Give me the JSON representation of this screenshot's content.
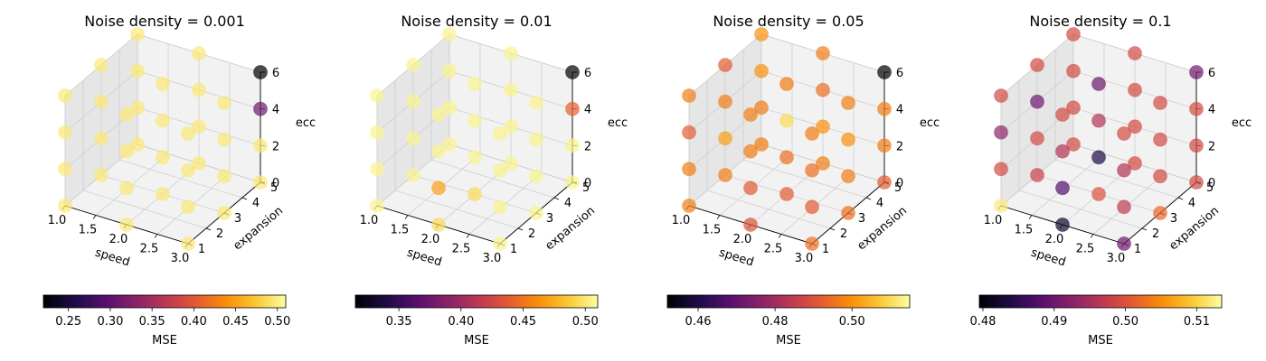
{
  "chart_data": [
    {
      "type": "scatter3d",
      "title": "Noise density = 0.001",
      "xlabel": "speed",
      "ylabel": "expansion",
      "zlabel": "ecc",
      "xticks": [
        "1.0",
        "1.5",
        "2.0",
        "2.5",
        "3.0"
      ],
      "yticks": [
        "1",
        "2",
        "3",
        "4",
        "5"
      ],
      "zticks": [
        "0",
        "2",
        "4",
        "6"
      ],
      "colorbar": {
        "label": "MSE",
        "cmap": "inferno",
        "min": 0.22,
        "max": 0.51,
        "ticks": [
          "0.25",
          "0.30",
          "0.35",
          "0.40",
          "0.45",
          "0.50"
        ],
        "tick_values": [
          0.25,
          0.3,
          0.35,
          0.4,
          0.45,
          0.5
        ]
      },
      "points": [
        {
          "speed": 1,
          "expansion": 1,
          "ecc": 0,
          "mse": 0.495
        },
        {
          "speed": 2,
          "expansion": 1,
          "ecc": 0,
          "mse": 0.495
        },
        {
          "speed": 3,
          "expansion": 1,
          "ecc": 0,
          "mse": 0.495
        },
        {
          "speed": 1,
          "expansion": 3,
          "ecc": 0,
          "mse": 0.495
        },
        {
          "speed": 2,
          "expansion": 3,
          "ecc": 0,
          "mse": 0.495
        },
        {
          "speed": 3,
          "expansion": 3,
          "ecc": 0,
          "mse": 0.495
        },
        {
          "speed": 1,
          "expansion": 5,
          "ecc": 0,
          "mse": 0.495
        },
        {
          "speed": 2,
          "expansion": 5,
          "ecc": 0,
          "mse": 0.495
        },
        {
          "speed": 3,
          "expansion": 5,
          "ecc": 0,
          "mse": 0.495
        },
        {
          "speed": 1,
          "expansion": 1,
          "ecc": 2,
          "mse": 0.495
        },
        {
          "speed": 2,
          "expansion": 1,
          "ecc": 2,
          "mse": 0.495
        },
        {
          "speed": 3,
          "expansion": 1,
          "ecc": 2,
          "mse": 0.495
        },
        {
          "speed": 1,
          "expansion": 3,
          "ecc": 2,
          "mse": 0.495
        },
        {
          "speed": 2,
          "expansion": 3,
          "ecc": 2,
          "mse": 0.495
        },
        {
          "speed": 3,
          "expansion": 3,
          "ecc": 2,
          "mse": 0.495
        },
        {
          "speed": 1,
          "expansion": 5,
          "ecc": 2,
          "mse": 0.495
        },
        {
          "speed": 2,
          "expansion": 5,
          "ecc": 2,
          "mse": 0.495
        },
        {
          "speed": 3,
          "expansion": 5,
          "ecc": 2,
          "mse": 0.495
        },
        {
          "speed": 1,
          "expansion": 1,
          "ecc": 4,
          "mse": 0.495
        },
        {
          "speed": 2,
          "expansion": 1,
          "ecc": 4,
          "mse": 0.495
        },
        {
          "speed": 3,
          "expansion": 1,
          "ecc": 4,
          "mse": 0.495
        },
        {
          "speed": 1,
          "expansion": 3,
          "ecc": 4,
          "mse": 0.495
        },
        {
          "speed": 2,
          "expansion": 3,
          "ecc": 4,
          "mse": 0.495
        },
        {
          "speed": 3,
          "expansion": 3,
          "ecc": 4,
          "mse": 0.495
        },
        {
          "speed": 1,
          "expansion": 5,
          "ecc": 4,
          "mse": 0.495
        },
        {
          "speed": 2,
          "expansion": 5,
          "ecc": 4,
          "mse": 0.495
        },
        {
          "speed": 3,
          "expansion": 5,
          "ecc": 4,
          "mse": 0.31
        },
        {
          "speed": 1,
          "expansion": 1,
          "ecc": 6,
          "mse": 0.495
        },
        {
          "speed": 2,
          "expansion": 1,
          "ecc": 6,
          "mse": 0.495
        },
        {
          "speed": 3,
          "expansion": 1,
          "ecc": 6,
          "mse": 0.495
        },
        {
          "speed": 1,
          "expansion": 3,
          "ecc": 6,
          "mse": 0.495
        },
        {
          "speed": 2,
          "expansion": 3,
          "ecc": 6,
          "mse": 0.495
        },
        {
          "speed": 3,
          "expansion": 3,
          "ecc": 6,
          "mse": 0.495
        },
        {
          "speed": 1,
          "expansion": 5,
          "ecc": 6,
          "mse": 0.495
        },
        {
          "speed": 2,
          "expansion": 5,
          "ecc": 6,
          "mse": 0.495
        },
        {
          "speed": 3,
          "expansion": 5,
          "ecc": 6,
          "mse": 0.22
        }
      ]
    },
    {
      "type": "scatter3d",
      "title": "Noise density = 0.01",
      "xlabel": "speed",
      "ylabel": "expansion",
      "zlabel": "ecc",
      "xticks": [
        "1.0",
        "1.5",
        "2.0",
        "2.5",
        "3.0"
      ],
      "yticks": [
        "1",
        "2",
        "3",
        "4",
        "5"
      ],
      "zticks": [
        "0",
        "2",
        "4",
        "6"
      ],
      "colorbar": {
        "label": "MSE",
        "cmap": "inferno",
        "min": 0.315,
        "max": 0.51,
        "ticks": [
          "0.35",
          "0.40",
          "0.45",
          "0.50"
        ],
        "tick_values": [
          0.35,
          0.4,
          0.45,
          0.5
        ]
      },
      "points": [
        {
          "speed": 1,
          "expansion": 1,
          "ecc": 0,
          "mse": 0.505
        },
        {
          "speed": 2,
          "expansion": 1,
          "ecc": 0,
          "mse": 0.495
        },
        {
          "speed": 3,
          "expansion": 1,
          "ecc": 0,
          "mse": 0.505
        },
        {
          "speed": 1,
          "expansion": 3,
          "ecc": 0,
          "mse": 0.505
        },
        {
          "speed": 2,
          "expansion": 3,
          "ecc": 0,
          "mse": 0.495
        },
        {
          "speed": 3,
          "expansion": 3,
          "ecc": 0,
          "mse": 0.505
        },
        {
          "speed": 1,
          "expansion": 5,
          "ecc": 0,
          "mse": 0.505
        },
        {
          "speed": 2,
          "expansion": 5,
          "ecc": 0,
          "mse": 0.505
        },
        {
          "speed": 3,
          "expansion": 5,
          "ecc": 0,
          "mse": 0.505
        },
        {
          "speed": 1,
          "expansion": 1,
          "ecc": 2,
          "mse": 0.505
        },
        {
          "speed": 2,
          "expansion": 1,
          "ecc": 2,
          "mse": 0.47
        },
        {
          "speed": 3,
          "expansion": 1,
          "ecc": 2,
          "mse": 0.505
        },
        {
          "speed": 1,
          "expansion": 3,
          "ecc": 2,
          "mse": 0.505
        },
        {
          "speed": 2,
          "expansion": 3,
          "ecc": 2,
          "mse": 0.505
        },
        {
          "speed": 3,
          "expansion": 3,
          "ecc": 2,
          "mse": 0.505
        },
        {
          "speed": 1,
          "expansion": 5,
          "ecc": 2,
          "mse": 0.505
        },
        {
          "speed": 2,
          "expansion": 5,
          "ecc": 2,
          "mse": 0.505
        },
        {
          "speed": 3,
          "expansion": 5,
          "ecc": 2,
          "mse": 0.505
        },
        {
          "speed": 1,
          "expansion": 1,
          "ecc": 4,
          "mse": 0.505
        },
        {
          "speed": 2,
          "expansion": 1,
          "ecc": 4,
          "mse": 0.505
        },
        {
          "speed": 3,
          "expansion": 1,
          "ecc": 4,
          "mse": 0.505
        },
        {
          "speed": 1,
          "expansion": 3,
          "ecc": 4,
          "mse": 0.505
        },
        {
          "speed": 2,
          "expansion": 3,
          "ecc": 4,
          "mse": 0.505
        },
        {
          "speed": 3,
          "expansion": 3,
          "ecc": 4,
          "mse": 0.505
        },
        {
          "speed": 1,
          "expansion": 5,
          "ecc": 4,
          "mse": 0.505
        },
        {
          "speed": 2,
          "expansion": 5,
          "ecc": 4,
          "mse": 0.505
        },
        {
          "speed": 3,
          "expansion": 5,
          "ecc": 4,
          "mse": 0.44
        },
        {
          "speed": 1,
          "expansion": 1,
          "ecc": 6,
          "mse": 0.505
        },
        {
          "speed": 2,
          "expansion": 1,
          "ecc": 6,
          "mse": 0.505
        },
        {
          "speed": 3,
          "expansion": 1,
          "ecc": 6,
          "mse": 0.505
        },
        {
          "speed": 1,
          "expansion": 3,
          "ecc": 6,
          "mse": 0.505
        },
        {
          "speed": 2,
          "expansion": 3,
          "ecc": 6,
          "mse": 0.505
        },
        {
          "speed": 3,
          "expansion": 3,
          "ecc": 6,
          "mse": 0.505
        },
        {
          "speed": 1,
          "expansion": 5,
          "ecc": 6,
          "mse": 0.505
        },
        {
          "speed": 2,
          "expansion": 5,
          "ecc": 6,
          "mse": 0.505
        },
        {
          "speed": 3,
          "expansion": 5,
          "ecc": 6,
          "mse": 0.315
        }
      ]
    },
    {
      "type": "scatter3d",
      "title": "Noise density = 0.05",
      "xlabel": "speed",
      "ylabel": "expansion",
      "zlabel": "ecc",
      "xticks": [
        "1.0",
        "1.5",
        "2.0",
        "2.5",
        "3.0"
      ],
      "yticks": [
        "1",
        "2",
        "3",
        "4",
        "5"
      ],
      "zticks": [
        "0",
        "2",
        "4",
        "6"
      ],
      "colorbar": {
        "label": "MSE",
        "cmap": "inferno",
        "min": 0.452,
        "max": 0.515,
        "ticks": [
          "0.46",
          "0.48",
          "0.50"
        ],
        "tick_values": [
          0.46,
          0.48,
          0.5
        ]
      },
      "points": [
        {
          "speed": 1,
          "expansion": 1,
          "ecc": 0,
          "mse": 0.497
        },
        {
          "speed": 2,
          "expansion": 1,
          "ecc": 0,
          "mse": 0.49
        },
        {
          "speed": 3,
          "expansion": 1,
          "ecc": 0,
          "mse": 0.495
        },
        {
          "speed": 1,
          "expansion": 3,
          "ecc": 0,
          "mse": 0.497
        },
        {
          "speed": 2,
          "expansion": 3,
          "ecc": 0,
          "mse": 0.492
        },
        {
          "speed": 3,
          "expansion": 3,
          "ecc": 0,
          "mse": 0.495
        },
        {
          "speed": 1,
          "expansion": 5,
          "ecc": 0,
          "mse": 0.497
        },
        {
          "speed": 2,
          "expansion": 5,
          "ecc": 0,
          "mse": 0.497
        },
        {
          "speed": 3,
          "expansion": 5,
          "ecc": 0,
          "mse": 0.492
        },
        {
          "speed": 1,
          "expansion": 1,
          "ecc": 2,
          "mse": 0.497
        },
        {
          "speed": 2,
          "expansion": 1,
          "ecc": 2,
          "mse": 0.492
        },
        {
          "speed": 3,
          "expansion": 1,
          "ecc": 2,
          "mse": 0.492
        },
        {
          "speed": 1,
          "expansion": 3,
          "ecc": 2,
          "mse": 0.502
        },
        {
          "speed": 2,
          "expansion": 3,
          "ecc": 2,
          "mse": 0.495
        },
        {
          "speed": 3,
          "expansion": 3,
          "ecc": 2,
          "mse": 0.497
        },
        {
          "speed": 1,
          "expansion": 5,
          "ecc": 2,
          "mse": 0.497
        },
        {
          "speed": 2,
          "expansion": 5,
          "ecc": 2,
          "mse": 0.5
        },
        {
          "speed": 3,
          "expansion": 5,
          "ecc": 2,
          "mse": 0.497
        },
        {
          "speed": 1,
          "expansion": 1,
          "ecc": 4,
          "mse": 0.492
        },
        {
          "speed": 2,
          "expansion": 1,
          "ecc": 4,
          "mse": 0.497
        },
        {
          "speed": 3,
          "expansion": 1,
          "ecc": 4,
          "mse": 0.495
        },
        {
          "speed": 1,
          "expansion": 3,
          "ecc": 4,
          "mse": 0.497
        },
        {
          "speed": 2,
          "expansion": 3,
          "ecc": 4,
          "mse": 0.51
        },
        {
          "speed": 3,
          "expansion": 3,
          "ecc": 4,
          "mse": 0.5
        },
        {
          "speed": 1,
          "expansion": 5,
          "ecc": 4,
          "mse": 0.5
        },
        {
          "speed": 2,
          "expansion": 5,
          "ecc": 4,
          "mse": 0.495
        },
        {
          "speed": 3,
          "expansion": 5,
          "ecc": 4,
          "mse": 0.497
        },
        {
          "speed": 1,
          "expansion": 1,
          "ecc": 6,
          "mse": 0.497
        },
        {
          "speed": 2,
          "expansion": 1,
          "ecc": 6,
          "mse": 0.497
        },
        {
          "speed": 3,
          "expansion": 1,
          "ecc": 6,
          "mse": 0.497
        },
        {
          "speed": 1,
          "expansion": 3,
          "ecc": 6,
          "mse": 0.492
        },
        {
          "speed": 2,
          "expansion": 3,
          "ecc": 6,
          "mse": 0.497
        },
        {
          "speed": 3,
          "expansion": 3,
          "ecc": 6,
          "mse": 0.497
        },
        {
          "speed": 1,
          "expansion": 5,
          "ecc": 6,
          "mse": 0.5
        },
        {
          "speed": 2,
          "expansion": 5,
          "ecc": 6,
          "mse": 0.497
        },
        {
          "speed": 3,
          "expansion": 5,
          "ecc": 6,
          "mse": 0.452
        }
      ]
    },
    {
      "type": "scatter3d",
      "title": "Noise density = 0.1",
      "xlabel": "speed",
      "ylabel": "expansion",
      "zlabel": "ecc",
      "xticks": [
        "1.0",
        "1.5",
        "2.0",
        "2.5",
        "3.0"
      ],
      "yticks": [
        "1",
        "2",
        "3",
        "4",
        "5"
      ],
      "zticks": [
        "0",
        "2",
        "4",
        "6"
      ],
      "colorbar": {
        "label": "MSE",
        "cmap": "inferno",
        "min": 0.4795,
        "max": 0.5135,
        "ticks": [
          "0.48",
          "0.49",
          "0.50",
          "0.51"
        ],
        "tick_values": [
          0.48,
          0.49,
          0.5,
          0.51
        ]
      },
      "points": [
        {
          "speed": 1,
          "expansion": 1,
          "ecc": 0,
          "mse": 0.512
        },
        {
          "speed": 2,
          "expansion": 1,
          "ecc": 0,
          "mse": 0.482
        },
        {
          "speed": 3,
          "expansion": 1,
          "ecc": 0,
          "mse": 0.49
        },
        {
          "speed": 1,
          "expansion": 3,
          "ecc": 0,
          "mse": 0.498
        },
        {
          "speed": 2,
          "expansion": 3,
          "ecc": 0,
          "mse": 0.5
        },
        {
          "speed": 3,
          "expansion": 3,
          "ecc": 0,
          "mse": 0.502
        },
        {
          "speed": 1,
          "expansion": 5,
          "ecc": 0,
          "mse": 0.499
        },
        {
          "speed": 2,
          "expansion": 5,
          "ecc": 0,
          "mse": 0.499
        },
        {
          "speed": 3,
          "expansion": 5,
          "ecc": 0,
          "mse": 0.499
        },
        {
          "speed": 1,
          "expansion": 1,
          "ecc": 2,
          "mse": 0.499
        },
        {
          "speed": 2,
          "expansion": 1,
          "ecc": 2,
          "mse": 0.488
        },
        {
          "speed": 3,
          "expansion": 1,
          "ecc": 2,
          "mse": 0.497
        },
        {
          "speed": 1,
          "expansion": 3,
          "ecc": 2,
          "mse": 0.499
        },
        {
          "speed": 2,
          "expansion": 3,
          "ecc": 2,
          "mse": 0.484
        },
        {
          "speed": 3,
          "expansion": 3,
          "ecc": 2,
          "mse": 0.499
        },
        {
          "speed": 1,
          "expansion": 5,
          "ecc": 2,
          "mse": 0.499
        },
        {
          "speed": 2,
          "expansion": 5,
          "ecc": 2,
          "mse": 0.499
        },
        {
          "speed": 3,
          "expansion": 5,
          "ecc": 2,
          "mse": 0.499
        },
        {
          "speed": 1,
          "expansion": 1,
          "ecc": 4,
          "mse": 0.493
        },
        {
          "speed": 2,
          "expansion": 1,
          "ecc": 4,
          "mse": 0.496
        },
        {
          "speed": 3,
          "expansion": 1,
          "ecc": 4,
          "mse": 0.496
        },
        {
          "speed": 1,
          "expansion": 3,
          "ecc": 4,
          "mse": 0.49
        },
        {
          "speed": 2,
          "expansion": 3,
          "ecc": 4,
          "mse": 0.496
        },
        {
          "speed": 3,
          "expansion": 3,
          "ecc": 4,
          "mse": 0.499
        },
        {
          "speed": 1,
          "expansion": 5,
          "ecc": 4,
          "mse": 0.499
        },
        {
          "speed": 2,
          "expansion": 5,
          "ecc": 4,
          "mse": 0.499
        },
        {
          "speed": 3,
          "expansion": 5,
          "ecc": 4,
          "mse": 0.499
        },
        {
          "speed": 1,
          "expansion": 1,
          "ecc": 6,
          "mse": 0.499
        },
        {
          "speed": 2,
          "expansion": 1,
          "ecc": 6,
          "mse": 0.499
        },
        {
          "speed": 3,
          "expansion": 1,
          "ecc": 6,
          "mse": 0.499
        },
        {
          "speed": 1,
          "expansion": 3,
          "ecc": 6,
          "mse": 0.499
        },
        {
          "speed": 2,
          "expansion": 3,
          "ecc": 6,
          "mse": 0.49
        },
        {
          "speed": 3,
          "expansion": 3,
          "ecc": 6,
          "mse": 0.499
        },
        {
          "speed": 1,
          "expansion": 5,
          "ecc": 6,
          "mse": 0.499
        },
        {
          "speed": 2,
          "expansion": 5,
          "ecc": 6,
          "mse": 0.499
        },
        {
          "speed": 3,
          "expansion": 5,
          "ecc": 6,
          "mse": 0.49
        }
      ]
    }
  ],
  "colors": {
    "pane_fill": "#f2f2f2",
    "pane_fill_dark": "#e6e6e6",
    "grid": "#cfcfcf",
    "marker_alpha": 0.7
  }
}
